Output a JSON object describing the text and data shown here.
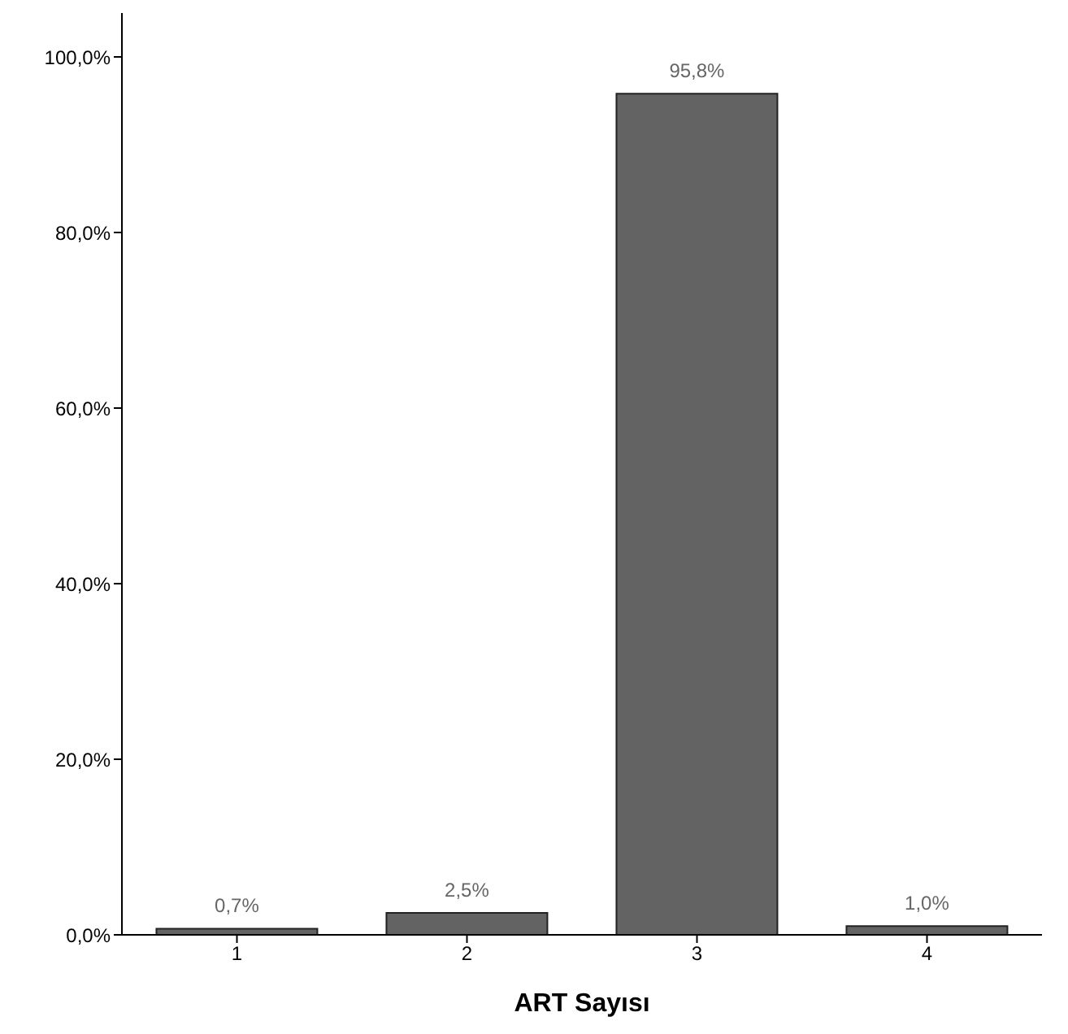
{
  "chart_data": {
    "type": "bar",
    "xlabel": "ART Sayısı",
    "categories": [
      "1",
      "2",
      "3",
      "4"
    ],
    "values": [
      0.7,
      2.5,
      95.8,
      1.0
    ],
    "color": "#636363",
    "value_labels": [
      "0,7%",
      "2,5%",
      "95,8%",
      "1,0%"
    ],
    "ylim": [
      0,
      105
    ],
    "yticks": [
      {
        "value": 0,
        "label": "0,0%"
      },
      {
        "value": 20,
        "label": "20,0%"
      },
      {
        "value": 40,
        "label": "40,0%"
      },
      {
        "value": 60,
        "label": "60,0%"
      },
      {
        "value": 80,
        "label": "80,0%"
      },
      {
        "value": 100,
        "label": "100,0%"
      }
    ],
    "grid": false,
    "legend": false
  }
}
